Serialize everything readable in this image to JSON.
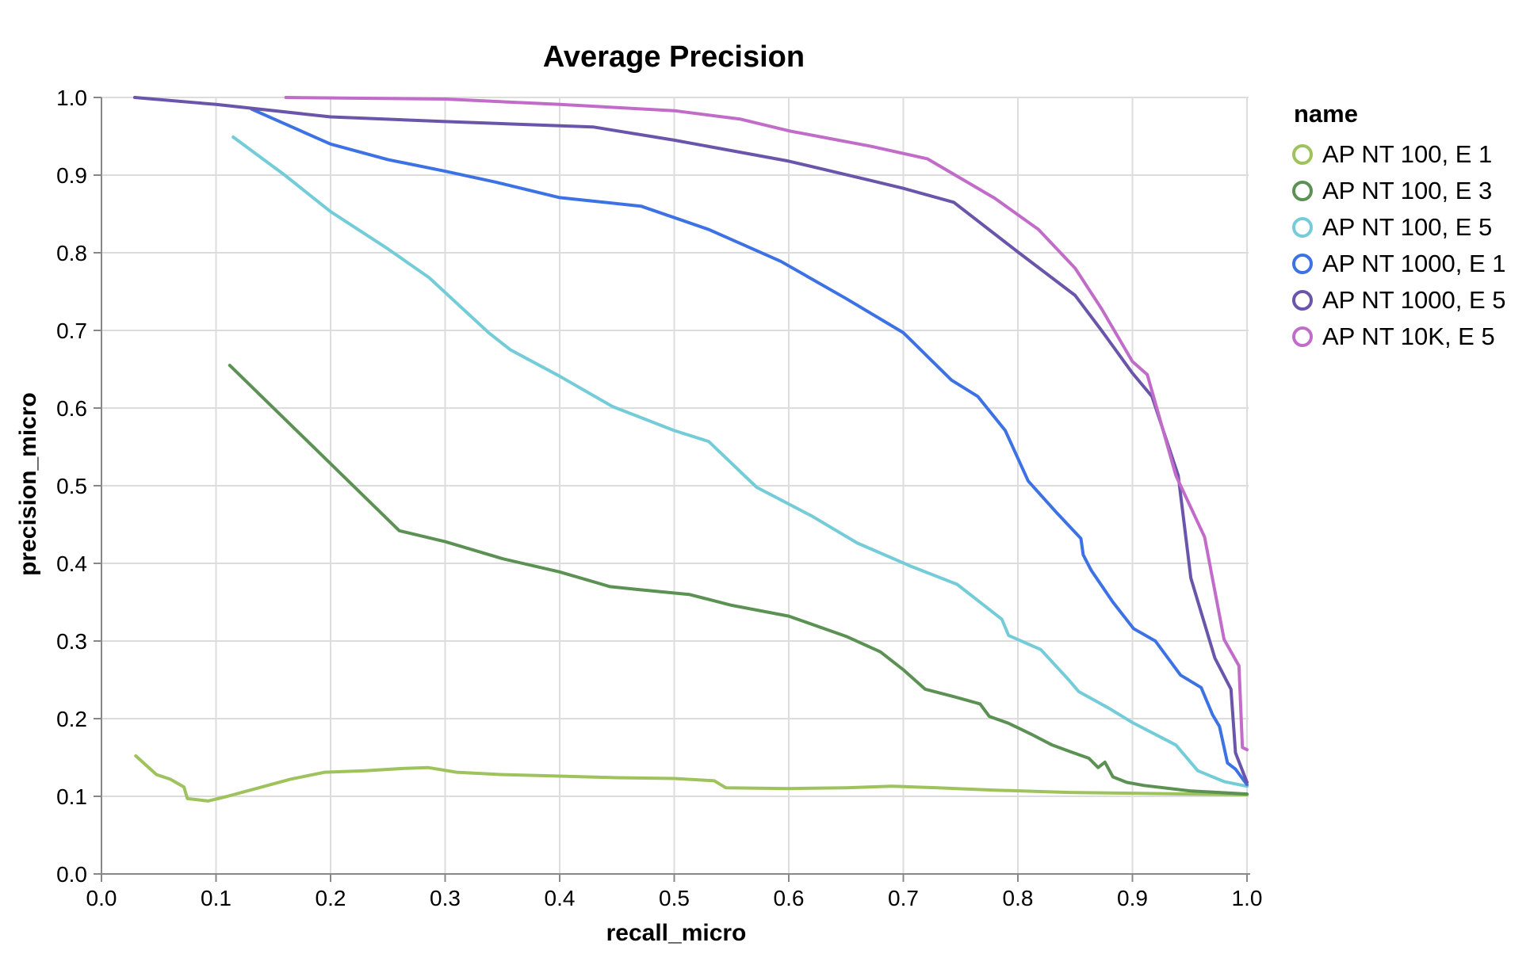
{
  "title": "Average Precision",
  "colors": {
    "grid": "#dddddd",
    "axis": "#888888",
    "label": "#000000",
    "background": "#ffffff"
  },
  "legend": {
    "title": "name",
    "items": [
      {
        "label": "AP NT 100, E 1",
        "color": "#9ec25c",
        "icon": "open-circle"
      },
      {
        "label": "AP NT 100, E 3",
        "color": "#5b9153",
        "icon": "open-circle"
      },
      {
        "label": "AP NT 100, E 5",
        "color": "#74ccd8",
        "icon": "open-circle"
      },
      {
        "label": "AP NT 1000, E 1",
        "color": "#3d72e5",
        "icon": "open-circle"
      },
      {
        "label": "AP NT 1000, E 5",
        "color": "#6a55ab",
        "icon": "open-circle"
      },
      {
        "label": "AP NT 10K, E 5",
        "color": "#c16cc8",
        "icon": "open-circle"
      }
    ]
  },
  "chart_data": {
    "type": "line",
    "title": "Average Precision",
    "xlabel": "recall_micro",
    "ylabel": "precision_micro",
    "xlim": [
      0.0,
      1.0
    ],
    "ylim": [
      0.0,
      1.0
    ],
    "grid": true,
    "legend_position": "right",
    "x_tick_labels": [
      "0.0",
      "0.1",
      "0.2",
      "0.3",
      "0.4",
      "0.5",
      "0.6",
      "0.7",
      "0.8",
      "0.9",
      "1.0"
    ],
    "y_tick_labels": [
      "0.0",
      "0.1",
      "0.2",
      "0.3",
      "0.4",
      "0.5",
      "0.6",
      "0.7",
      "0.8",
      "0.9",
      "1.0"
    ],
    "x_ticks": [
      0,
      0.1,
      0.2,
      0.3,
      0.4,
      0.5,
      0.6,
      0.7,
      0.8,
      0.9,
      1.0
    ],
    "y_ticks": [
      0,
      0.1,
      0.2,
      0.3,
      0.4,
      0.5,
      0.6,
      0.7,
      0.8,
      0.9,
      1.0
    ],
    "series": [
      {
        "name": "AP NT 100, E 1",
        "color": "#9ec25c",
        "points": [
          [
            0.03,
            0.152
          ],
          [
            0.048,
            0.128
          ],
          [
            0.06,
            0.122
          ],
          [
            0.072,
            0.112
          ],
          [
            0.075,
            0.097
          ],
          [
            0.093,
            0.094
          ],
          [
            0.11,
            0.1
          ],
          [
            0.135,
            0.11
          ],
          [
            0.165,
            0.122
          ],
          [
            0.195,
            0.131
          ],
          [
            0.23,
            0.133
          ],
          [
            0.265,
            0.136
          ],
          [
            0.285,
            0.137
          ],
          [
            0.31,
            0.131
          ],
          [
            0.35,
            0.128
          ],
          [
            0.4,
            0.126
          ],
          [
            0.45,
            0.124
          ],
          [
            0.5,
            0.123
          ],
          [
            0.535,
            0.12
          ],
          [
            0.545,
            0.111
          ],
          [
            0.6,
            0.11
          ],
          [
            0.65,
            0.111
          ],
          [
            0.69,
            0.113
          ],
          [
            0.73,
            0.111
          ],
          [
            0.78,
            0.108
          ],
          [
            0.845,
            0.105
          ],
          [
            0.9,
            0.104
          ],
          [
            0.95,
            0.103
          ],
          [
            1.0,
            0.102
          ]
        ]
      },
      {
        "name": "AP NT 100, E 3",
        "color": "#5b9153",
        "points": [
          [
            0.112,
            0.655
          ],
          [
            0.26,
            0.442
          ],
          [
            0.3,
            0.428
          ],
          [
            0.35,
            0.406
          ],
          [
            0.4,
            0.389
          ],
          [
            0.444,
            0.37
          ],
          [
            0.47,
            0.366
          ],
          [
            0.513,
            0.36
          ],
          [
            0.55,
            0.346
          ],
          [
            0.6,
            0.332
          ],
          [
            0.65,
            0.306
          ],
          [
            0.68,
            0.286
          ],
          [
            0.7,
            0.263
          ],
          [
            0.719,
            0.238
          ],
          [
            0.745,
            0.228
          ],
          [
            0.767,
            0.219
          ],
          [
            0.775,
            0.203
          ],
          [
            0.792,
            0.194
          ],
          [
            0.813,
            0.179
          ],
          [
            0.83,
            0.166
          ],
          [
            0.845,
            0.158
          ],
          [
            0.862,
            0.149
          ],
          [
            0.87,
            0.137
          ],
          [
            0.876,
            0.144
          ],
          [
            0.883,
            0.125
          ],
          [
            0.895,
            0.118
          ],
          [
            0.91,
            0.114
          ],
          [
            0.95,
            0.107
          ],
          [
            1.0,
            0.103
          ]
        ]
      },
      {
        "name": "AP NT 100, E 5",
        "color": "#74ccd8",
        "points": [
          [
            0.115,
            0.949
          ],
          [
            0.16,
            0.9
          ],
          [
            0.2,
            0.853
          ],
          [
            0.25,
            0.805
          ],
          [
            0.286,
            0.768
          ],
          [
            0.338,
            0.697
          ],
          [
            0.357,
            0.675
          ],
          [
            0.4,
            0.641
          ],
          [
            0.446,
            0.602
          ],
          [
            0.5,
            0.571
          ],
          [
            0.53,
            0.557
          ],
          [
            0.572,
            0.498
          ],
          [
            0.62,
            0.461
          ],
          [
            0.66,
            0.426
          ],
          [
            0.707,
            0.396
          ],
          [
            0.747,
            0.373
          ],
          [
            0.786,
            0.328
          ],
          [
            0.792,
            0.307
          ],
          [
            0.82,
            0.289
          ],
          [
            0.845,
            0.249
          ],
          [
            0.853,
            0.235
          ],
          [
            0.88,
            0.213
          ],
          [
            0.9,
            0.195
          ],
          [
            0.938,
            0.166
          ],
          [
            0.957,
            0.133
          ],
          [
            0.98,
            0.119
          ],
          [
            1.0,
            0.113
          ]
        ]
      },
      {
        "name": "AP NT 1000, E 1",
        "color": "#3d72e5",
        "points": [
          [
            0.131,
            0.985
          ],
          [
            0.2,
            0.94
          ],
          [
            0.25,
            0.92
          ],
          [
            0.3,
            0.905
          ],
          [
            0.344,
            0.891
          ],
          [
            0.4,
            0.871
          ],
          [
            0.471,
            0.86
          ],
          [
            0.53,
            0.83
          ],
          [
            0.593,
            0.789
          ],
          [
            0.65,
            0.741
          ],
          [
            0.7,
            0.697
          ],
          [
            0.742,
            0.636
          ],
          [
            0.765,
            0.615
          ],
          [
            0.789,
            0.571
          ],
          [
            0.809,
            0.506
          ],
          [
            0.834,
            0.465
          ],
          [
            0.855,
            0.432
          ],
          [
            0.857,
            0.411
          ],
          [
            0.864,
            0.391
          ],
          [
            0.883,
            0.35
          ],
          [
            0.901,
            0.316
          ],
          [
            0.92,
            0.3
          ],
          [
            0.942,
            0.256
          ],
          [
            0.96,
            0.24
          ],
          [
            0.97,
            0.205
          ],
          [
            0.976,
            0.19
          ],
          [
            0.983,
            0.143
          ],
          [
            0.99,
            0.135
          ],
          [
            1.0,
            0.115
          ]
        ]
      },
      {
        "name": "AP NT 1000, E 5",
        "color": "#6a55ab",
        "points": [
          [
            0.029,
            1.0
          ],
          [
            0.1,
            0.991
          ],
          [
            0.2,
            0.975
          ],
          [
            0.3,
            0.969
          ],
          [
            0.429,
            0.962
          ],
          [
            0.5,
            0.945
          ],
          [
            0.6,
            0.918
          ],
          [
            0.672,
            0.893
          ],
          [
            0.7,
            0.883
          ],
          [
            0.744,
            0.865
          ],
          [
            0.8,
            0.801
          ],
          [
            0.85,
            0.745
          ],
          [
            0.873,
            0.7
          ],
          [
            0.9,
            0.645
          ],
          [
            0.917,
            0.615
          ],
          [
            0.94,
            0.513
          ],
          [
            0.951,
            0.381
          ],
          [
            0.972,
            0.278
          ],
          [
            0.986,
            0.238
          ],
          [
            0.99,
            0.156
          ],
          [
            1.0,
            0.118
          ]
        ]
      },
      {
        "name": "AP NT 10K, E 5",
        "color": "#c16cc8",
        "points": [
          [
            0.161,
            1.0
          ],
          [
            0.3,
            0.998
          ],
          [
            0.4,
            0.991
          ],
          [
            0.5,
            0.983
          ],
          [
            0.558,
            0.972
          ],
          [
            0.6,
            0.957
          ],
          [
            0.672,
            0.937
          ],
          [
            0.721,
            0.921
          ],
          [
            0.78,
            0.87
          ],
          [
            0.818,
            0.83
          ],
          [
            0.85,
            0.78
          ],
          [
            0.873,
            0.728
          ],
          [
            0.9,
            0.66
          ],
          [
            0.913,
            0.643
          ],
          [
            0.938,
            0.513
          ],
          [
            0.963,
            0.434
          ],
          [
            0.98,
            0.302
          ],
          [
            0.993,
            0.268
          ],
          [
            0.996,
            0.163
          ],
          [
            1.0,
            0.16
          ]
        ]
      }
    ]
  }
}
